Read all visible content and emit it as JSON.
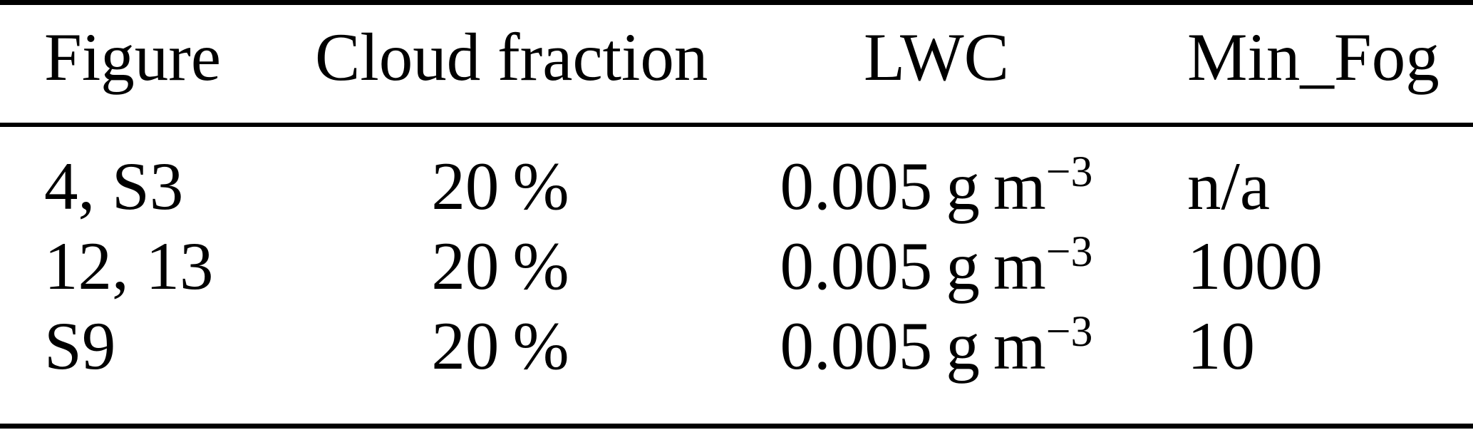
{
  "colors": {
    "background": "#ffffff",
    "text": "#000000",
    "rule": "#000000"
  },
  "table": {
    "columns": [
      "Figure",
      "Cloud fraction",
      "LWC",
      "Min_Fog"
    ],
    "rows": [
      {
        "figure": "4, S3",
        "cloud_fraction": "20 %",
        "lwc_value": "0.005 g m",
        "lwc_exponent": "−3",
        "min_fog": "n/a"
      },
      {
        "figure": "12, 13",
        "cloud_fraction": "20 %",
        "lwc_value": "0.005 g m",
        "lwc_exponent": "−3",
        "min_fog": "1000"
      },
      {
        "figure": "S9",
        "cloud_fraction": "20 %",
        "lwc_value": "0.005 g m",
        "lwc_exponent": "−3",
        "min_fog": "10"
      }
    ]
  }
}
